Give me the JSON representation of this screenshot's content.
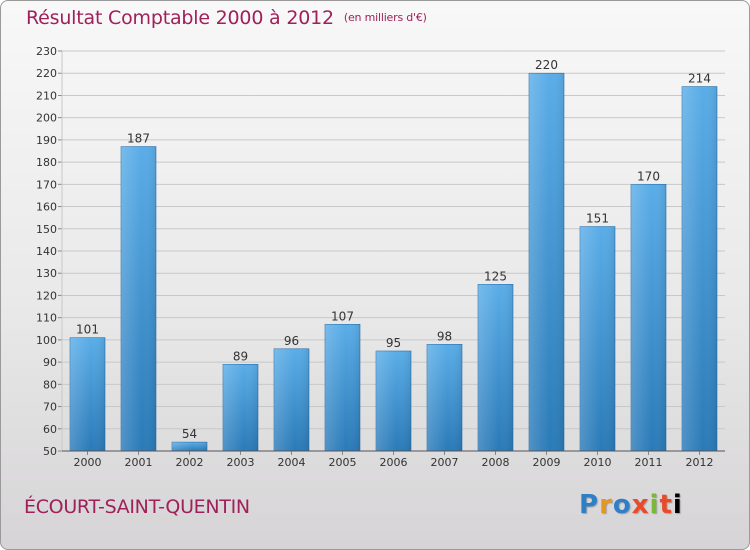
{
  "header": {
    "title": "Résultat Comptable 2000 à 2012",
    "unit": "(en milliers d'€)"
  },
  "footer": {
    "city": "ÉCOURT-SAINT-QUENTIN",
    "brand": [
      "P",
      "r",
      "o",
      "x",
      "i",
      "t",
      "i"
    ]
  },
  "colors": {
    "title": "#a0205a",
    "bar_top": "#5aade8",
    "bar_bottom": "#2a7ab8"
  },
  "chart_data": {
    "type": "bar",
    "title": "Résultat Comptable 2000 à 2012",
    "xlabel": "",
    "ylabel": "",
    "categories": [
      "2000",
      "2001",
      "2002",
      "2003",
      "2004",
      "2005",
      "2006",
      "2007",
      "2008",
      "2009",
      "2010",
      "2011",
      "2012"
    ],
    "values": [
      101,
      187,
      54,
      89,
      96,
      107,
      95,
      98,
      125,
      220,
      151,
      170,
      214
    ],
    "ylim": [
      50,
      230
    ],
    "yticks": [
      50,
      60,
      70,
      80,
      90,
      100,
      110,
      120,
      130,
      140,
      150,
      160,
      170,
      180,
      190,
      200,
      210,
      220,
      230
    ],
    "grid": true
  }
}
